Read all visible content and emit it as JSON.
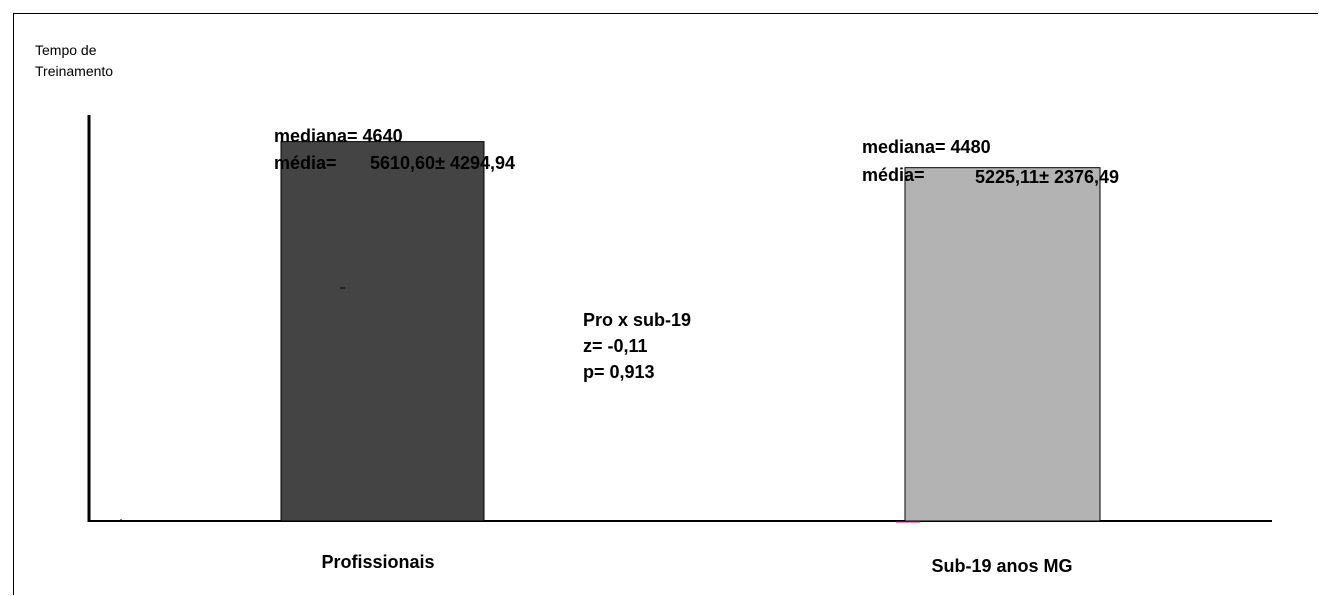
{
  "chart_data": {
    "type": "bar",
    "ylabel": [
      "Tempo de",
      "Treinamento"
    ],
    "categories": [
      "Profissionais",
      "Sub-19 anos MG"
    ],
    "values": [
      5610.6,
      5225.11
    ],
    "colors": [
      "#444444",
      "#b3b3b3"
    ],
    "ylim": [
      0,
      6300
    ],
    "annotations": [
      {
        "label_median": "mediana= 4640",
        "label_mean_prefix": "média=",
        "label_mean_value": "5610,60± 4294,94"
      },
      {
        "label_median": "mediana= 4480",
        "label_mean_prefix": "média=",
        "label_mean_value": "5225,11± 2376,49"
      }
    ],
    "test": {
      "title": "Pro x sub-19",
      "z": "z= -0,11",
      "p": "p= 0,913"
    }
  }
}
